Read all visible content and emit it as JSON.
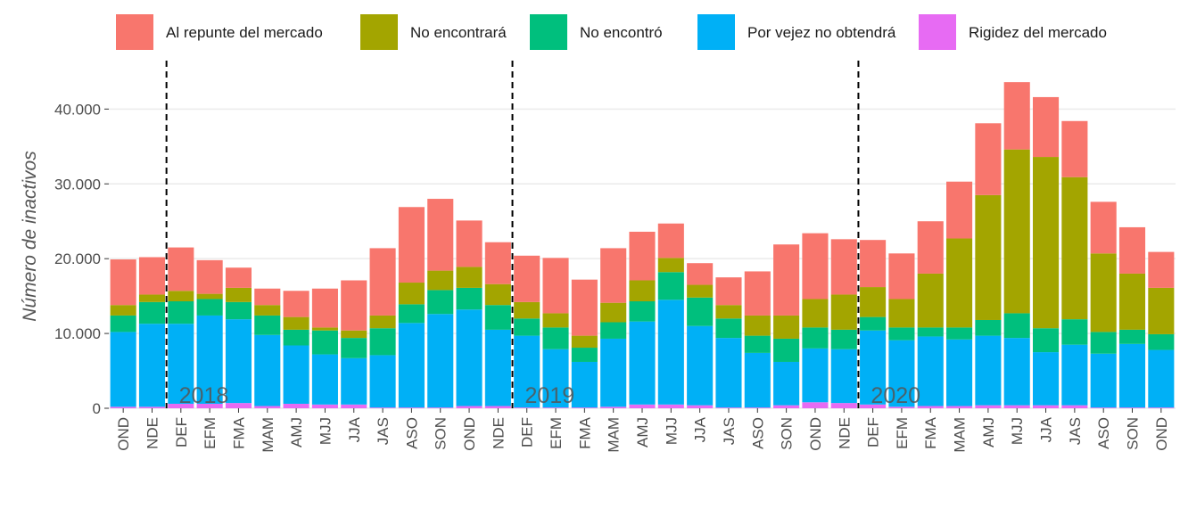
{
  "chart_data": {
    "type": "stacked_bar",
    "y_label": "Número de inactivos",
    "categories": [
      "OND",
      "NDE",
      "DEF",
      "EFM",
      "FMA",
      "MAM",
      "AMJ",
      "MJJ",
      "JJA",
      "JAS",
      "ASO",
      "SON",
      "OND",
      "NDE",
      "DEF",
      "EFM",
      "FMA",
      "MAM",
      "AMJ",
      "MJJ",
      "JJA",
      "JAS",
      "ASO",
      "SON",
      "OND",
      "NDE",
      "DEF",
      "EFM",
      "FMA",
      "MAM",
      "AMJ",
      "MJJ",
      "JJA",
      "JAS",
      "ASO",
      "SON",
      "OND"
    ],
    "series": [
      {
        "name": "Al repunte del mercado",
        "color": "#F8766D",
        "values": [
          6100,
          5000,
          5800,
          4500,
          2700,
          2200,
          3500,
          5200,
          6700,
          9000,
          10100,
          9600,
          6200,
          5600,
          6200,
          7400,
          7500,
          7300,
          6500,
          4600,
          2900,
          3700,
          5900,
          9500,
          8800,
          7400,
          6300,
          6100,
          7000,
          7600,
          9600,
          9000,
          8000,
          7500,
          6900,
          6200,
          4800
        ]
      },
      {
        "name": "No encontrará",
        "color": "#A3A500",
        "values": [
          1400,
          1000,
          1400,
          700,
          1900,
          1400,
          1700,
          400,
          1000,
          1700,
          2900,
          2600,
          2800,
          2800,
          2200,
          1900,
          1600,
          2600,
          2800,
          1900,
          1700,
          1800,
          2700,
          3100,
          3800,
          4700,
          4000,
          3800,
          7200,
          11900,
          16700,
          21900,
          22900,
          19000,
          10500,
          7500,
          6200
        ]
      },
      {
        "name": "No encontró",
        "color": "#00BF7D",
        "values": [
          2200,
          2900,
          3000,
          2200,
          2300,
          2600,
          2100,
          3200,
          2700,
          3600,
          2500,
          3200,
          2900,
          3300,
          2300,
          2900,
          1900,
          2200,
          2700,
          3700,
          3800,
          2600,
          2300,
          3100,
          2800,
          2600,
          1800,
          1700,
          1200,
          1600,
          2100,
          3300,
          3200,
          3400,
          2900,
          1900,
          2100
        ]
      },
      {
        "name": "Por vejez no obtendrá",
        "color": "#00B0F6",
        "values": [
          10000,
          11100,
          10700,
          11800,
          11200,
          9500,
          7800,
          6700,
          6200,
          7000,
          11300,
          12500,
          12900,
          10200,
          9600,
          7800,
          6100,
          9100,
          11100,
          14000,
          10600,
          9300,
          7300,
          5800,
          7200,
          7200,
          9900,
          8900,
          9300,
          8900,
          9300,
          9000,
          7100,
          8100,
          7200,
          8500,
          7700
        ]
      },
      {
        "name": "Rigidez del mercado",
        "color": "#E76BF3",
        "values": [
          200,
          200,
          600,
          600,
          700,
          300,
          600,
          500,
          500,
          100,
          100,
          100,
          300,
          300,
          100,
          100,
          100,
          200,
          500,
          500,
          400,
          100,
          100,
          400,
          800,
          700,
          500,
          200,
          300,
          300,
          400,
          400,
          400,
          400,
          100,
          100,
          100
        ]
      }
    ],
    "ylim": [
      0,
      46000
    ],
    "yticks": [
      0,
      {
        "value": 10000,
        "label": "10.000"
      },
      {
        "value": 20000,
        "label": "20.000"
      },
      {
        "value": 30000,
        "label": "30.000"
      },
      {
        "value": 40000,
        "label": "40.000"
      }
    ],
    "grid": true,
    "legend": "top",
    "annotations": [
      "2018",
      "2019",
      "2020"
    ]
  }
}
